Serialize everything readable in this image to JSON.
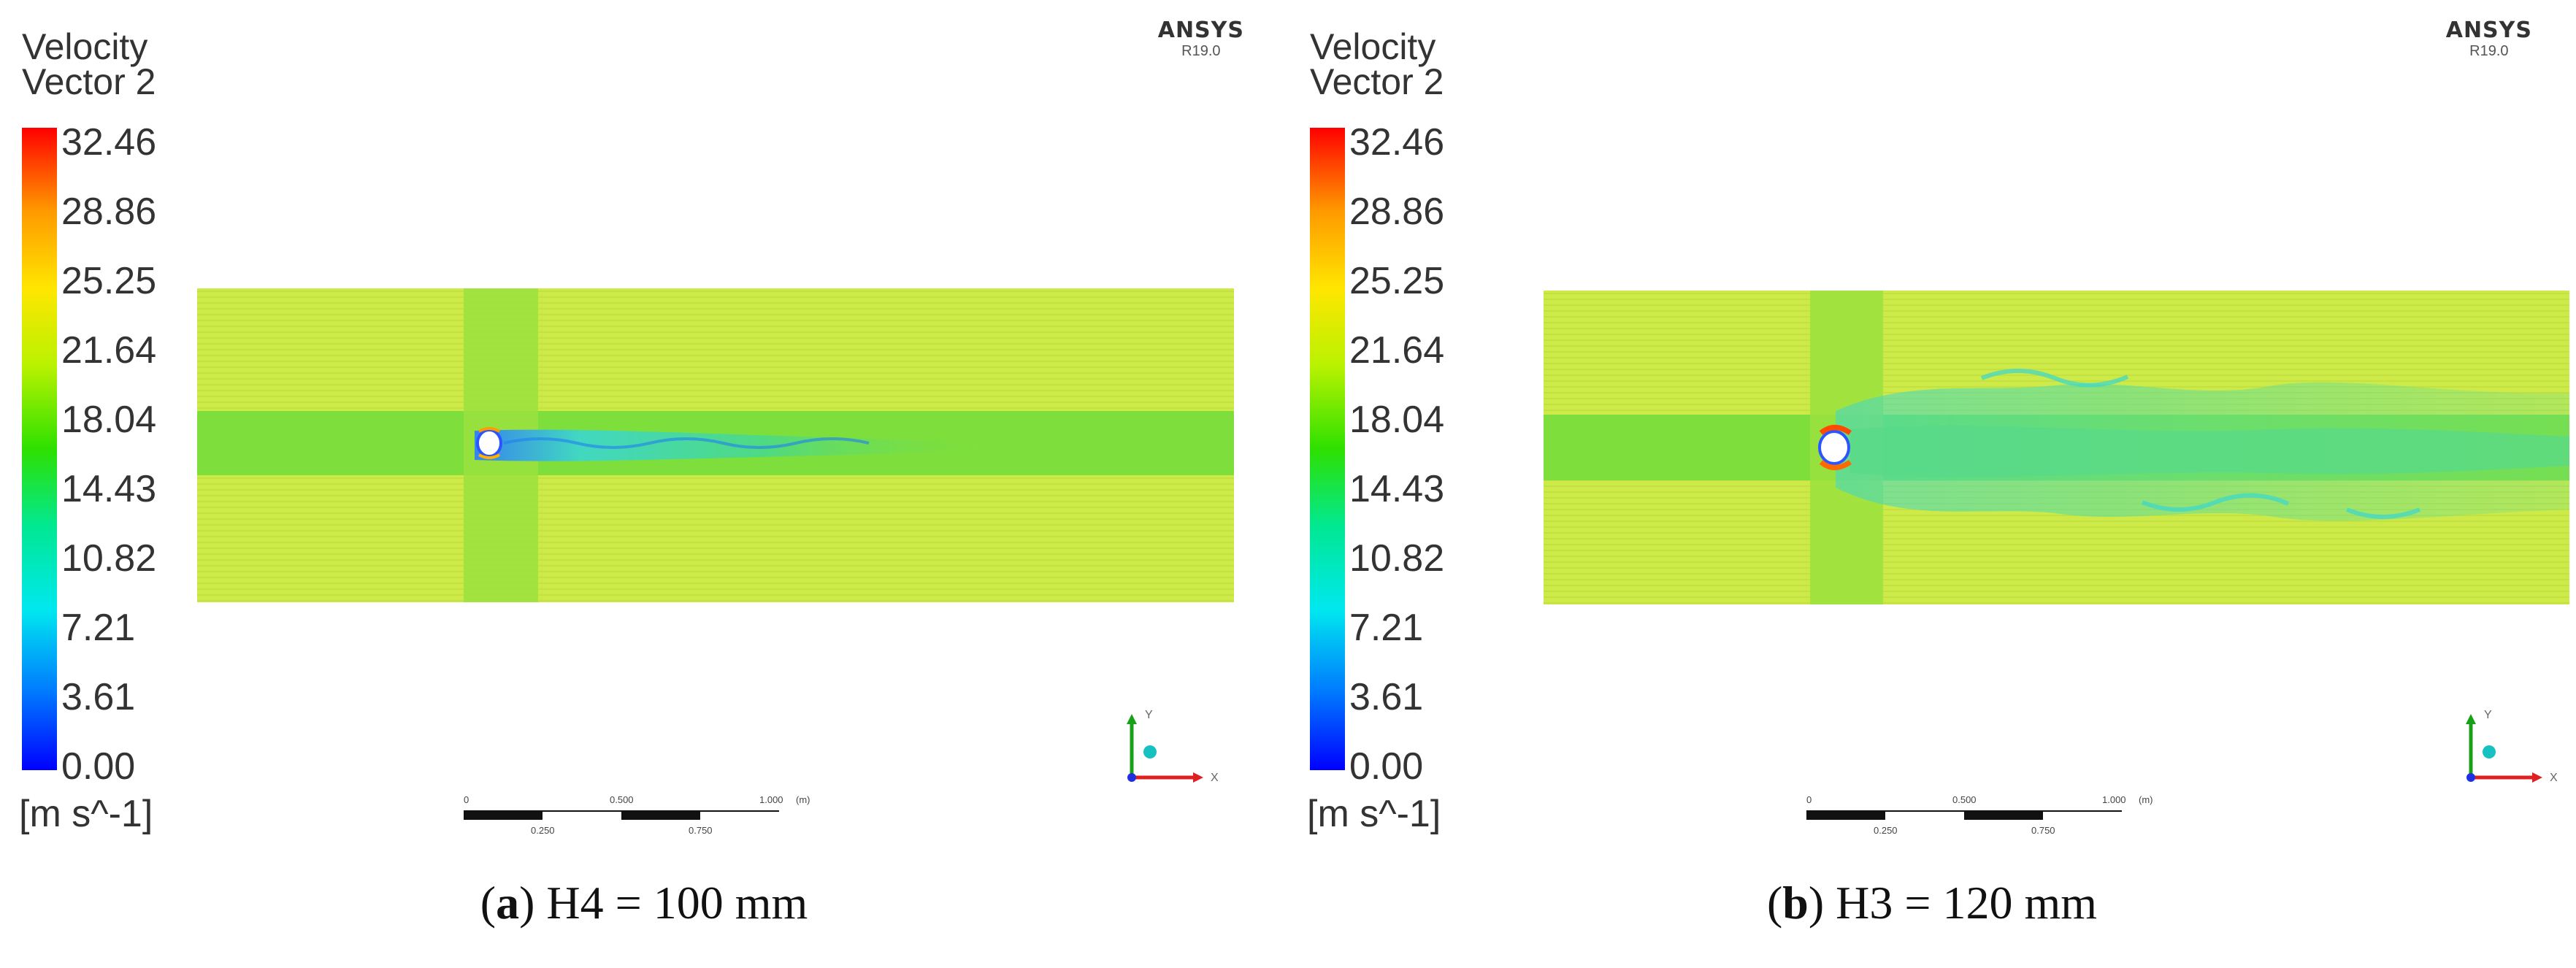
{
  "legend": {
    "title_line1": "Velocity",
    "title_line2": "Vector 2",
    "ticks": [
      "32.46",
      "28.86",
      "25.25",
      "21.64",
      "18.04",
      "14.43",
      "10.82",
      "7.21",
      "3.61",
      "0.00"
    ],
    "unit": "[m s^-1]"
  },
  "branding": {
    "logo": "ANSYS",
    "version": "R19.0"
  },
  "scale_bar": {
    "top_labels": [
      "0",
      "0.500",
      "1.000"
    ],
    "top_unit": "(m)",
    "bottom_labels": [
      "0.250",
      "0.750"
    ]
  },
  "axis_triad": {
    "y": "Y",
    "x": "X"
  },
  "panels": [
    {
      "caption_letter": "a",
      "caption_text": "H4 = 100 mm"
    },
    {
      "caption_letter": "b",
      "caption_text": "H3 = 120 mm"
    }
  ],
  "colors": {
    "field_background": "#cdea48",
    "central_band": "#7edf3c",
    "wake": "#4ad4a8",
    "cylinder": "#ffffff"
  }
}
